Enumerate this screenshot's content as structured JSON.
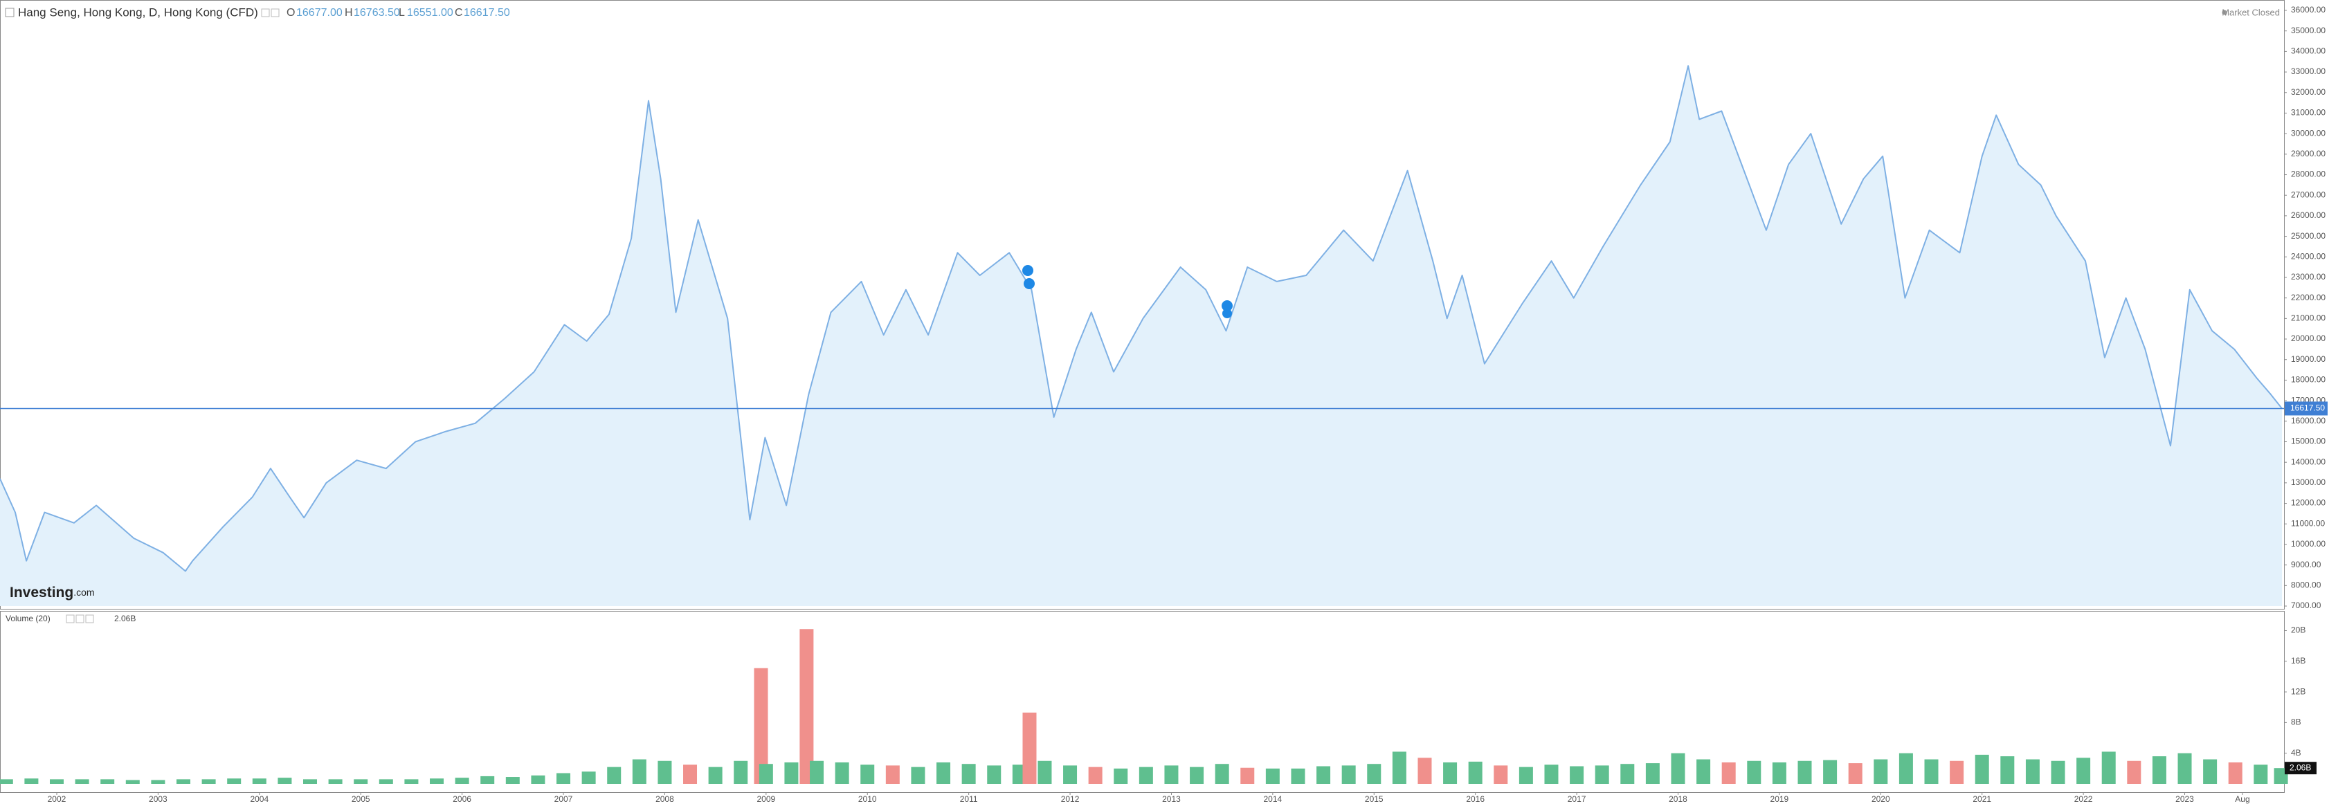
{
  "header": {
    "title": "Hang Seng, Hong Kong, D, Hong Kong (CFD)",
    "ohlc": [
      {
        "key": "O",
        "value": "16677.00"
      },
      {
        "key": "H",
        "value": "16763.50"
      },
      {
        "key": "L",
        "value": "16551.00"
      },
      {
        "key": "C",
        "value": "16617.50"
      }
    ],
    "status": "Market Closed",
    "logo": {
      "name": "Investing",
      "suffix": ".com"
    }
  },
  "chart_data": [
    {
      "type": "line",
      "color": "#7eb0e4",
      "fill": "#e3f1fb",
      "x": [
        2001.44,
        2001.59,
        2001.7,
        2001.88,
        2002.17,
        2002.39,
        2002.76,
        2003.05,
        2003.27,
        2003.34,
        2003.64,
        2003.93,
        2004.11,
        2004.3,
        2004.44,
        2004.66,
        2004.96,
        2005.25,
        2005.54,
        2005.84,
        2006.13,
        2006.42,
        2006.71,
        2007.01,
        2007.23,
        2007.45,
        2007.67,
        2007.84,
        2007.96,
        2008.11,
        2008.33,
        2008.62,
        2008.84,
        2008.99,
        2009.2,
        2009.42,
        2009.64,
        2009.94,
        2010.16,
        2010.38,
        2010.6,
        2010.89,
        2011.11,
        2011.4,
        2011.62,
        2011.84,
        2012.06,
        2012.21,
        2012.43,
        2012.72,
        2013.09,
        2013.34,
        2013.54,
        2013.75,
        2014.04,
        2014.33,
        2014.7,
        2014.99,
        2015.33,
        2015.58,
        2015.72,
        2015.87,
        2016.09,
        2016.46,
        2016.75,
        2016.97,
        2017.26,
        2017.63,
        2017.92,
        2018.1,
        2018.21,
        2018.43,
        2018.65,
        2018.87,
        2019.09,
        2019.31,
        2019.61,
        2019.83,
        2020.02,
        2020.24,
        2020.48,
        2020.78,
        2021.0,
        2021.14,
        2021.36,
        2021.58,
        2021.73,
        2022.02,
        2022.21,
        2022.42,
        2022.61,
        2022.86,
        2023.05,
        2023.27,
        2023.49,
        2023.71,
        2023.85,
        2023.96
      ],
      "values": [
        13200,
        11560,
        9200,
        11560,
        11050,
        11900,
        10300,
        9600,
        8700,
        9200,
        10850,
        12300,
        13700,
        12300,
        11300,
        13000,
        14100,
        13700,
        15000,
        15500,
        15900,
        17100,
        18400,
        20700,
        19900,
        21200,
        24900,
        31600,
        27800,
        21300,
        25800,
        21000,
        11200,
        15200,
        11900,
        17300,
        21300,
        22800,
        20200,
        22400,
        20200,
        24200,
        23100,
        24200,
        22400,
        16200,
        19500,
        21300,
        18400,
        21000,
        23500,
        22400,
        20400,
        23500,
        22800,
        23100,
        25300,
        23800,
        28200,
        23800,
        21000,
        23100,
        18800,
        21700,
        23800,
        22000,
        24500,
        27500,
        29600,
        33300,
        30700,
        31100,
        28200,
        25300,
        28500,
        30000,
        25600,
        27800,
        28900,
        22000,
        25300,
        24200,
        28900,
        30900,
        28500,
        27500,
        26000,
        23800,
        19100,
        22000,
        19500,
        14800,
        22400,
        20400,
        19500,
        18100,
        17300,
        16617.5
      ],
      "price_line": {
        "value": 16617.5,
        "label": "16617.50",
        "color": "#3f7fd4"
      },
      "xlim": [
        2001.44,
        2023.98
      ],
      "ylim": [
        7000,
        36000
      ],
      "yticks": [
        {
          "value": 7000,
          "label": "7000.00"
        },
        {
          "value": 8000,
          "label": "8000.00"
        },
        {
          "value": 9000,
          "label": "9000.00"
        },
        {
          "value": 10000,
          "label": "10000.00"
        },
        {
          "value": 11000,
          "label": "11000.00"
        },
        {
          "value": 12000,
          "label": "12000.00"
        },
        {
          "value": 13000,
          "label": "13000.00"
        },
        {
          "value": 14000,
          "label": "14000.00"
        },
        {
          "value": 15000,
          "label": "15000.00"
        },
        {
          "value": 16000,
          "label": "16000.00"
        },
        {
          "value": 17000,
          "label": "17000.00"
        },
        {
          "value": 18000,
          "label": "18000.00"
        },
        {
          "value": 19000,
          "label": "19000.00"
        },
        {
          "value": 20000,
          "label": "20000.00"
        },
        {
          "value": 21000,
          "label": "21000.00"
        },
        {
          "value": 22000,
          "label": "22000.00"
        },
        {
          "value": 23000,
          "label": "23000.00"
        },
        {
          "value": 24000,
          "label": "24000.00"
        },
        {
          "value": 25000,
          "label": "25000.00"
        },
        {
          "value": 26000,
          "label": "26000.00"
        },
        {
          "value": 27000,
          "label": "27000.00"
        },
        {
          "value": 28000,
          "label": "28000.00"
        },
        {
          "value": 29000,
          "label": "29000.00"
        },
        {
          "value": 30000,
          "label": "30000.00"
        },
        {
          "value": 31000,
          "label": "31000.00"
        },
        {
          "value": 32000,
          "label": "32000.00"
        },
        {
          "value": 33000,
          "label": "33000.00"
        },
        {
          "value": 34000,
          "label": "34000.00"
        },
        {
          "value": 35000,
          "label": "35000.00"
        },
        {
          "value": 36000,
          "label": "36000.00"
        }
      ]
    },
    {
      "type": "bar",
      "title": "Volume (20)",
      "x": [
        2001.5,
        2001.75,
        2002,
        2002.25,
        2002.5,
        2002.75,
        2003,
        2003.25,
        2003.5,
        2003.75,
        2004,
        2004.25,
        2004.5,
        2004.75,
        2005,
        2005.25,
        2005.5,
        2005.75,
        2006,
        2006.25,
        2006.5,
        2006.75,
        2007,
        2007.25,
        2007.5,
        2007.75,
        2008,
        2008.25,
        2008.5,
        2008.75,
        2008.95,
        2009,
        2009.25,
        2009.4,
        2009.5,
        2009.75,
        2010,
        2010.25,
        2010.5,
        2010.75,
        2011,
        2011.25,
        2011.5,
        2011.6,
        2011.75,
        2012,
        2012.25,
        2012.5,
        2012.75,
        2013,
        2013.25,
        2013.5,
        2013.75,
        2014,
        2014.25,
        2014.5,
        2014.75,
        2015,
        2015.25,
        2015.5,
        2015.75,
        2016,
        2016.25,
        2016.5,
        2016.75,
        2017,
        2017.25,
        2017.5,
        2017.75,
        2018,
        2018.25,
        2018.5,
        2018.75,
        2019,
        2019.25,
        2019.5,
        2019.75,
        2020,
        2020.25,
        2020.5,
        2020.75,
        2021,
        2021.25,
        2021.5,
        2021.75,
        2022,
        2022.25,
        2022.5,
        2022.75,
        2023,
        2023.25,
        2023.5,
        2023.75,
        2023.95
      ],
      "values": [
        0.6,
        0.7,
        0.6,
        0.6,
        0.6,
        0.5,
        0.5,
        0.6,
        0.6,
        0.7,
        0.7,
        0.8,
        0.6,
        0.6,
        0.6,
        0.6,
        0.6,
        0.7,
        0.8,
        1.0,
        0.9,
        1.1,
        1.4,
        1.6,
        2.2,
        3.2,
        3.0,
        2.5,
        2.2,
        3.0,
        15.1,
        2.6,
        2.8,
        20.2,
        3.0,
        2.8,
        2.5,
        2.4,
        2.2,
        2.8,
        2.6,
        2.4,
        2.5,
        9.3,
        3.0,
        2.4,
        2.2,
        2.0,
        2.2,
        2.4,
        2.2,
        2.6,
        2.1,
        2.0,
        2.0,
        2.3,
        2.4,
        2.6,
        4.2,
        3.4,
        2.8,
        2.9,
        2.4,
        2.2,
        2.5,
        2.3,
        2.4,
        2.6,
        2.7,
        4.0,
        3.2,
        2.8,
        3.0,
        2.8,
        3.0,
        3.1,
        2.7,
        3.2,
        4.0,
        3.2,
        3.0,
        3.8,
        3.6,
        3.2,
        3.0,
        3.4,
        4.2,
        3.0,
        3.6,
        4.0,
        3.2,
        2.8,
        2.5,
        2.06
      ],
      "colors": [
        "#5fbf8f",
        "#5fbf8f",
        "#5fbf8f",
        "#5fbf8f",
        "#5fbf8f",
        "#5fbf8f",
        "#5fbf8f",
        "#5fbf8f",
        "#5fbf8f",
        "#5fbf8f",
        "#5fbf8f",
        "#5fbf8f",
        "#5fbf8f",
        "#5fbf8f",
        "#5fbf8f",
        "#5fbf8f",
        "#5fbf8f",
        "#5fbf8f",
        "#5fbf8f",
        "#5fbf8f",
        "#5fbf8f",
        "#5fbf8f",
        "#5fbf8f",
        "#5fbf8f",
        "#5fbf8f",
        "#5fbf8f",
        "#5fbf8f",
        "#f0908c",
        "#5fbf8f",
        "#5fbf8f",
        "#f0908c",
        "#5fbf8f",
        "#5fbf8f",
        "#f0908c",
        "#5fbf8f",
        "#5fbf8f",
        "#5fbf8f",
        "#f0908c",
        "#5fbf8f",
        "#5fbf8f",
        "#5fbf8f",
        "#5fbf8f",
        "#5fbf8f",
        "#f0908c",
        "#5fbf8f",
        "#5fbf8f",
        "#f0908c",
        "#5fbf8f",
        "#5fbf8f",
        "#5fbf8f",
        "#5fbf8f",
        "#5fbf8f",
        "#f0908c",
        "#5fbf8f",
        "#5fbf8f",
        "#5fbf8f",
        "#5fbf8f",
        "#5fbf8f",
        "#5fbf8f",
        "#f0908c",
        "#5fbf8f",
        "#5fbf8f",
        "#f0908c",
        "#5fbf8f",
        "#5fbf8f",
        "#5fbf8f",
        "#5fbf8f",
        "#5fbf8f",
        "#5fbf8f",
        "#5fbf8f",
        "#5fbf8f",
        "#f0908c",
        "#5fbf8f",
        "#5fbf8f",
        "#5fbf8f",
        "#5fbf8f",
        "#f0908c",
        "#5fbf8f",
        "#5fbf8f",
        "#5fbf8f",
        "#f0908c",
        "#5fbf8f",
        "#5fbf8f",
        "#5fbf8f",
        "#5fbf8f",
        "#5fbf8f",
        "#5fbf8f",
        "#f0908c",
        "#5fbf8f",
        "#5fbf8f",
        "#5fbf8f",
        "#f0908c",
        "#5fbf8f",
        "#5fbf8f"
      ],
      "current": {
        "value": 2.06,
        "label": "2.06B"
      },
      "xlim": [
        2001.44,
        2023.98
      ],
      "xticks": [
        2002,
        2003,
        2004,
        2005,
        2006,
        2007,
        2008,
        2009,
        2010,
        2011,
        2012,
        2013,
        2014,
        2015,
        2016,
        2017,
        2018,
        2019,
        2020,
        2021,
        2022,
        2023,
        {
          "value": 2023.57,
          "label": "Aug"
        }
      ],
      "ylim": [
        0,
        22.3
      ],
      "yticks": [
        {
          "value": 4,
          "label": "4B"
        },
        {
          "value": 8,
          "label": "8B"
        },
        {
          "value": 12,
          "label": "12B"
        },
        {
          "value": 16,
          "label": "16B"
        },
        {
          "value": 20,
          "label": "20B"
        }
      ]
    }
  ]
}
